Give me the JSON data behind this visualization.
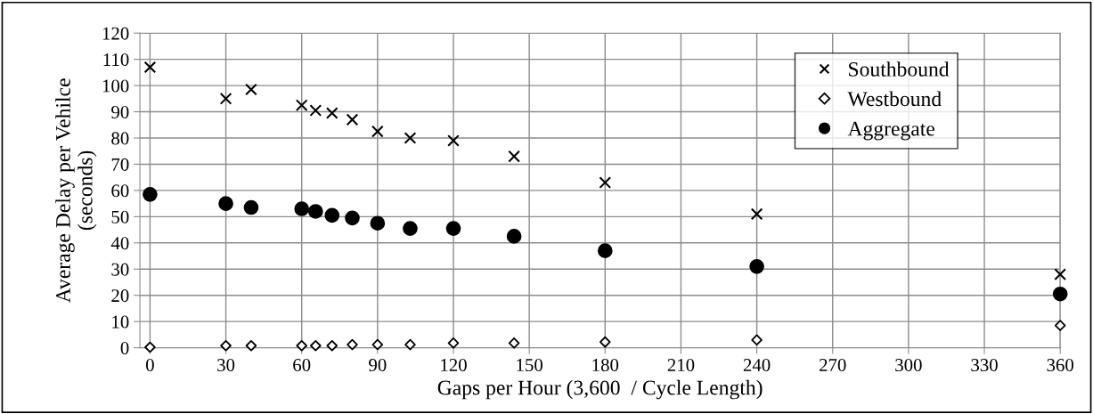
{
  "chart_data": {
    "type": "scatter",
    "xlabel": "Gaps per Hour (3,600  / Cycle Length)",
    "ylabel": "Average Delay per Vehilce\n(seconds)",
    "x": [
      0,
      30,
      40,
      60,
      65.5,
      72,
      80,
      90,
      102.9,
      120,
      144,
      180,
      240,
      360
    ],
    "series": [
      {
        "name": "Southbound",
        "color": "#000000",
        "marker": "cross",
        "values": [
          107,
          95,
          98.5,
          92.5,
          90.5,
          89.5,
          87,
          82.5,
          80,
          79,
          73,
          63,
          51,
          28
        ]
      },
      {
        "name": "Westbound",
        "color": "#000000",
        "marker": "diamond",
        "values": [
          0.2,
          0.8,
          0.8,
          0.8,
          0.8,
          0.8,
          1.2,
          1.2,
          1.2,
          1.8,
          1.8,
          2.2,
          3,
          8.5
        ]
      },
      {
        "name": "Aggregate",
        "color": "#000000",
        "marker": "circle",
        "values": [
          58.5,
          55,
          53.5,
          53,
          52,
          50.5,
          49.5,
          47.5,
          45.5,
          45.5,
          42.5,
          37,
          31,
          20.5
        ]
      }
    ],
    "xlim": [
      -4,
      360
    ],
    "xticks": [
      0,
      30,
      60,
      90,
      120,
      150,
      180,
      210,
      240,
      270,
      300,
      330,
      360
    ],
    "ylim": [
      0,
      120
    ],
    "yticks": [
      0,
      10,
      20,
      30,
      40,
      50,
      60,
      70,
      80,
      90,
      100,
      110,
      120
    ],
    "grid": true,
    "legend": "top right"
  }
}
